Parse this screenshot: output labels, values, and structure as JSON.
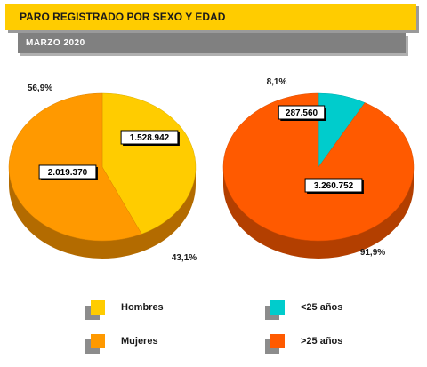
{
  "header": {
    "title": "PARO REGISTRADO POR SEXO Y EDAD",
    "subtitle": "MARZO 2020"
  },
  "colors": {
    "title_bg": "#ffcc00",
    "subtitle_bg": "#808080",
    "hombres": "#ffcc00",
    "mujeres": "#ff9900",
    "menor25": "#00cccc",
    "mayor25": "#ff5a00"
  },
  "chart_data": [
    {
      "type": "pie",
      "categories": [
        "Hombres",
        "Mujeres"
      ],
      "values": [
        1528942,
        2019370
      ],
      "value_labels": [
        "1.528.942",
        "2.019.370"
      ],
      "percent_labels": [
        "43,1%",
        "56,9%"
      ]
    },
    {
      "type": "pie",
      "categories": [
        "<25 años",
        ">25 años"
      ],
      "values": [
        287560,
        3260752
      ],
      "value_labels": [
        "287.560",
        "3.260.752"
      ],
      "percent_labels": [
        "8,1%",
        "91,9%"
      ]
    }
  ],
  "legend": [
    {
      "label": "Hombres",
      "color": "#ffcc00"
    },
    {
      "label": "Mujeres",
      "color": "#ff9900"
    },
    {
      "label": "<25 años",
      "color": "#00cccc"
    },
    {
      "label": ">25 años",
      "color": "#ff5a00"
    }
  ]
}
